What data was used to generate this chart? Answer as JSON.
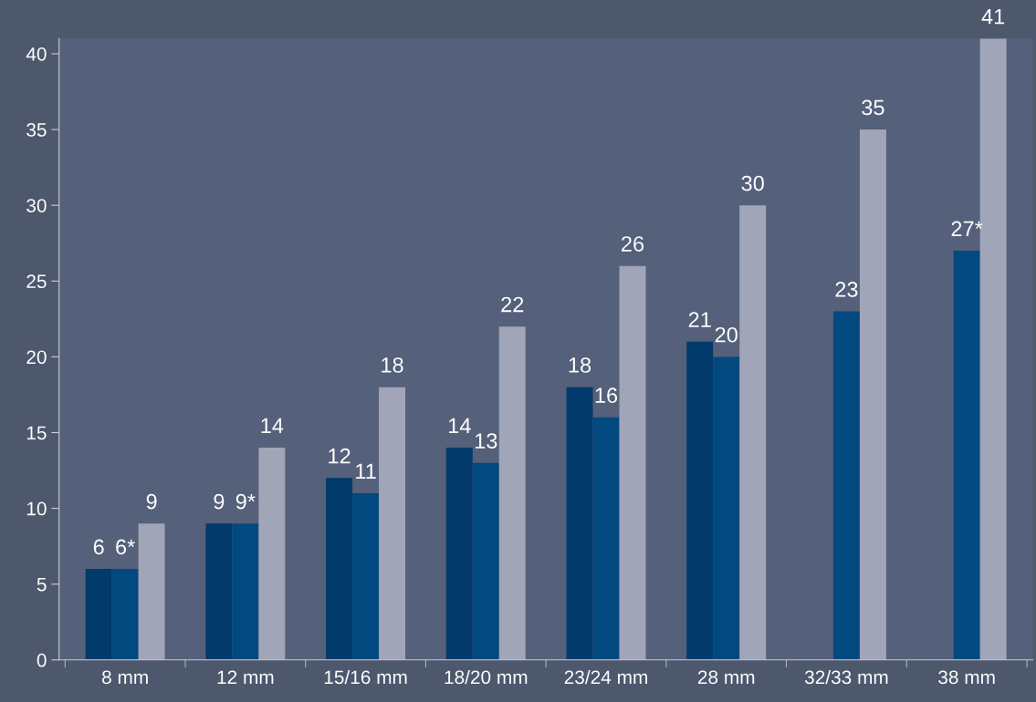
{
  "chart_data": {
    "type": "bar",
    "categories": [
      "8 mm",
      "12 mm",
      "15/16 mm",
      "18/20 mm",
      "23/24 mm",
      "28 mm",
      "32/33 mm",
      "38 mm"
    ],
    "series": [
      {
        "color": "#013a6b",
        "values": [
          6,
          9,
          12,
          14,
          18,
          21,
          null,
          null
        ],
        "value_labels": [
          "6",
          "9",
          "12",
          "14",
          "18",
          "21",
          null,
          null
        ]
      },
      {
        "color": "#02497f",
        "values": [
          6,
          9,
          11,
          13,
          16,
          20,
          23,
          27
        ],
        "value_labels": [
          "6*",
          "9*",
          "11",
          "13",
          "16",
          "20",
          "23",
          "27*"
        ]
      },
      {
        "color": "#a0a5b8",
        "values": [
          9,
          14,
          18,
          22,
          26,
          30,
          35,
          41
        ],
        "value_labels": [
          "9",
          "14",
          "18",
          "22",
          "26",
          "30",
          "35",
          "41"
        ]
      }
    ],
    "ylim": [
      0,
      41
    ],
    "yticks": [
      0,
      5,
      10,
      15,
      20,
      25,
      30,
      35,
      40
    ],
    "grid": false,
    "legend": false
  }
}
